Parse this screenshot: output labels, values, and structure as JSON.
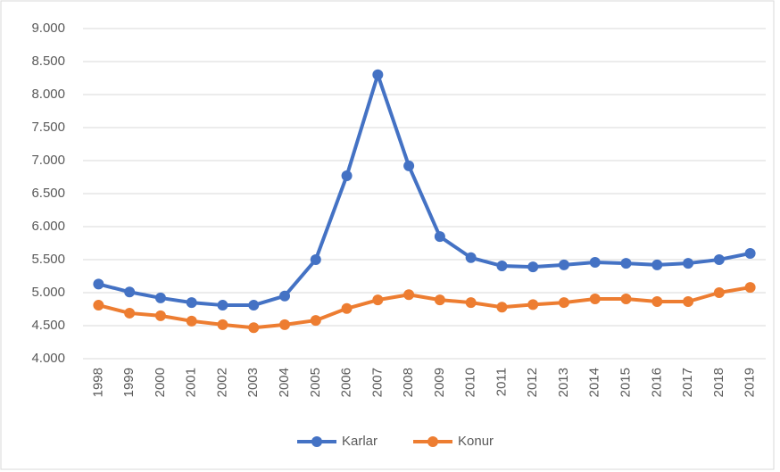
{
  "chart_data": {
    "type": "line",
    "categories": [
      "1998",
      "1999",
      "2000",
      "2001",
      "2002",
      "2003",
      "2004",
      "2005",
      "2006",
      "2007",
      "2008",
      "2009",
      "2010",
      "2011",
      "2012",
      "2013",
      "2014",
      "2015",
      "2016",
      "2017",
      "2018",
      "2019"
    ],
    "series": [
      {
        "name": "Karlar",
        "color": "#4472c4",
        "values": [
          5130,
          5010,
          4920,
          4850,
          4810,
          4810,
          4950,
          5500,
          6770,
          8300,
          6920,
          5850,
          5530,
          5405,
          5390,
          5420,
          5460,
          5445,
          5420,
          5445,
          5500,
          5595
        ]
      },
      {
        "name": "Konur",
        "color": "#ed7d31",
        "values": [
          4810,
          4690,
          4650,
          4570,
          4515,
          4470,
          4515,
          4580,
          4760,
          4890,
          4970,
          4890,
          4850,
          4780,
          4820,
          4850,
          4905,
          4905,
          4865,
          4865,
          5000,
          5080
        ]
      }
    ],
    "ylim": [
      4000,
      9000
    ],
    "yticks": [
      {
        "value": 4000,
        "label": "4.000"
      },
      {
        "value": 4500,
        "label": "4.500"
      },
      {
        "value": 5000,
        "label": "5.000"
      },
      {
        "value": 5500,
        "label": "5.500"
      },
      {
        "value": 6000,
        "label": "6.000"
      },
      {
        "value": 6500,
        "label": "6.500"
      },
      {
        "value": 7000,
        "label": "7.000"
      },
      {
        "value": 7500,
        "label": "7.500"
      },
      {
        "value": 8000,
        "label": "8.000"
      },
      {
        "value": 8500,
        "label": "8.500"
      },
      {
        "value": 9000,
        "label": "9.000"
      }
    ],
    "grid": true,
    "legend": "bottom"
  }
}
